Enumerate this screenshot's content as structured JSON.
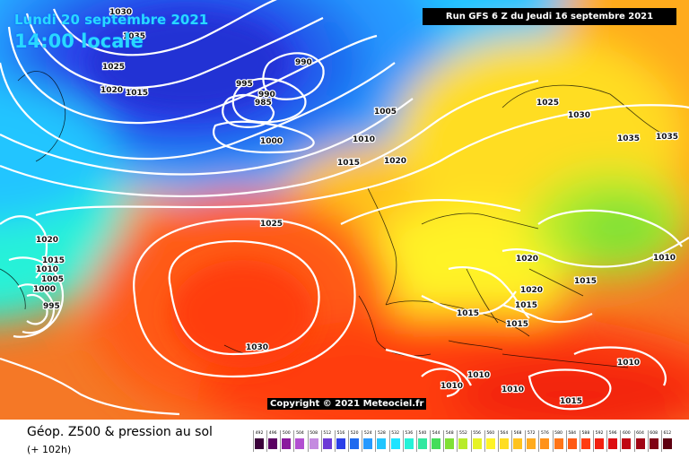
{
  "header": {
    "date": "Lundi 20 septembre 2021",
    "time": "14:00 locale",
    "run_info": "Run GFS 6 Z du Jeudi 16 septembre 2021"
  },
  "copyright": "Copyright © 2021 Meteociel.fr",
  "footer": {
    "title": "Géop. Z500 & pression au sol",
    "subtitle": "(+ 102h)"
  },
  "legend": {
    "values": [
      "492",
      "496",
      "500",
      "504",
      "508",
      "512",
      "516",
      "520",
      "524",
      "528",
      "532",
      "536",
      "540",
      "544",
      "548",
      "552",
      "556",
      "560",
      "564",
      "568",
      "572",
      "576",
      "580",
      "584",
      "588",
      "592",
      "596",
      "600",
      "604",
      "608",
      "612"
    ],
    "colors": [
      "#3a003a",
      "#5a0062",
      "#8a1a9e",
      "#b24fd1",
      "#c48ae0",
      "#6c3ad6",
      "#2a3ee8",
      "#1f6aef",
      "#2699ff",
      "#20c5ff",
      "#1fe3ff",
      "#25f2d8",
      "#30e8a0",
      "#44dd5a",
      "#7fe035",
      "#b8ec2a",
      "#e6f324",
      "#fff326",
      "#ffdd21",
      "#ffc31f",
      "#ffab1d",
      "#ff921a",
      "#ff7417",
      "#ff5a14",
      "#ff3c11",
      "#f2200f",
      "#dd0d10",
      "#c00612",
      "#a10515",
      "#800215",
      "#5e0011"
    ]
  },
  "pressure_labels": [
    "1035",
    "1030",
    "1025",
    "1020",
    "1015",
    "990",
    "995",
    "990",
    "985",
    "1005",
    "1010",
    "1000",
    "1015",
    "1020",
    "1025",
    "1030",
    "1035",
    "1035",
    "1020",
    "1015",
    "1010",
    "1005",
    "1000",
    "995",
    "1020",
    "1010",
    "1025",
    "1015",
    "1020",
    "1015",
    "1015",
    "1030",
    "1015",
    "1010",
    "1010",
    "1010",
    "1015",
    "1010"
  ],
  "colors": {
    "isobar": "#ffffff",
    "accent_text": "#29d8ff",
    "label_bg": "#000000"
  }
}
